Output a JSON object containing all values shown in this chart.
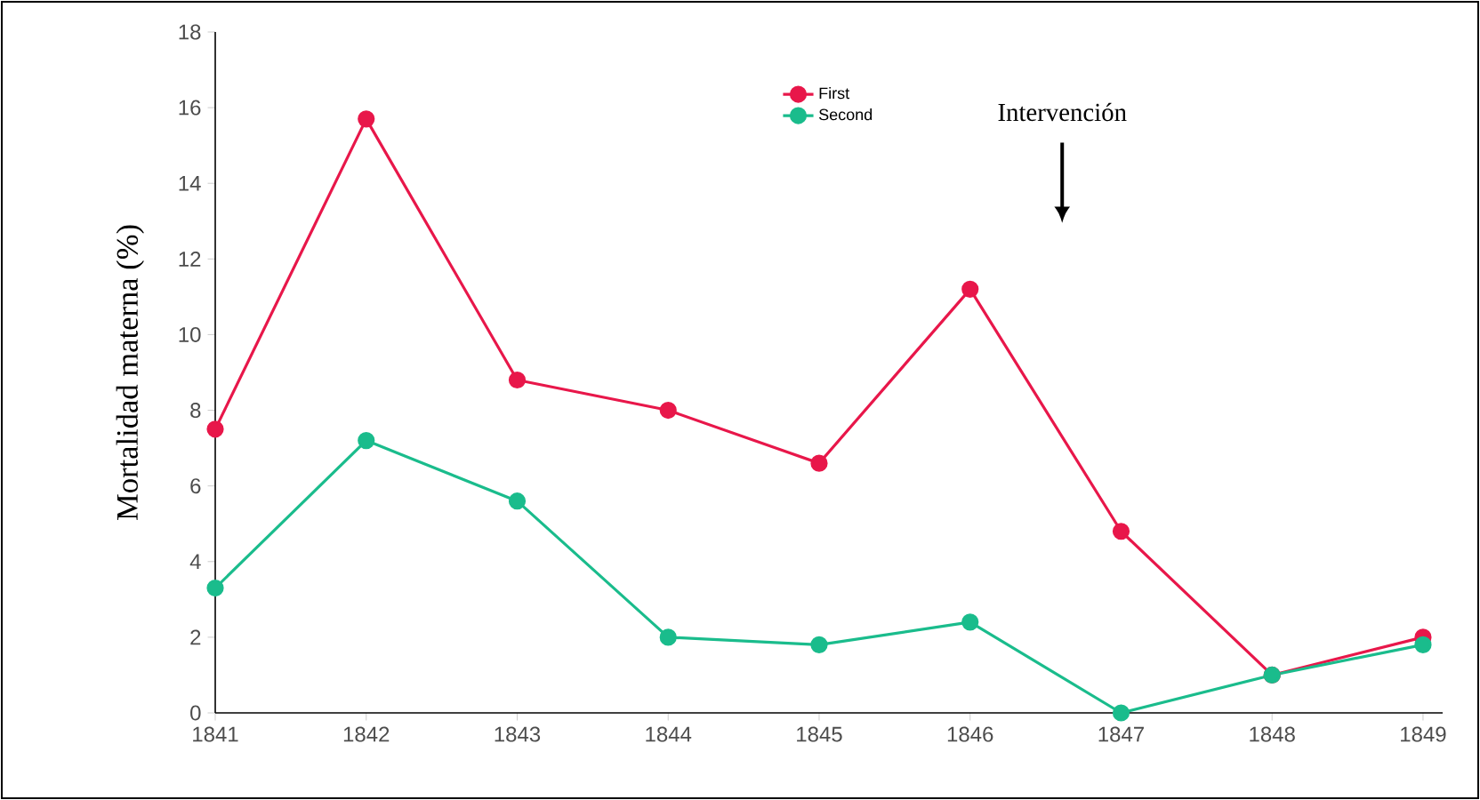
{
  "chart_data": {
    "type": "line",
    "ylabel": "Mortalidad materna (%)",
    "x": [
      1841,
      1842,
      1843,
      1844,
      1845,
      1846,
      1847,
      1848,
      1849
    ],
    "series": [
      {
        "name": "First",
        "color": "#e8174a",
        "values": [
          7.5,
          15.7,
          8.8,
          8.0,
          6.6,
          11.2,
          4.8,
          1.0,
          2.0
        ]
      },
      {
        "name": "Second",
        "color": "#1abc8c",
        "values": [
          3.3,
          7.2,
          5.6,
          2.0,
          1.8,
          2.4,
          0,
          1.0,
          1.8
        ]
      }
    ],
    "xlim": [
      1841,
      1849.13
    ],
    "xticks": [
      1841,
      1842,
      1843,
      1844,
      1845,
      1846,
      1847,
      1848,
      1849
    ],
    "ylim": [
      0,
      18
    ],
    "yticks": [
      0,
      2,
      4,
      6,
      8,
      10,
      12,
      14,
      16,
      18
    ],
    "annotations": [
      "Intervención"
    ],
    "legend": "top",
    "marker": "circle",
    "grid": false
  }
}
